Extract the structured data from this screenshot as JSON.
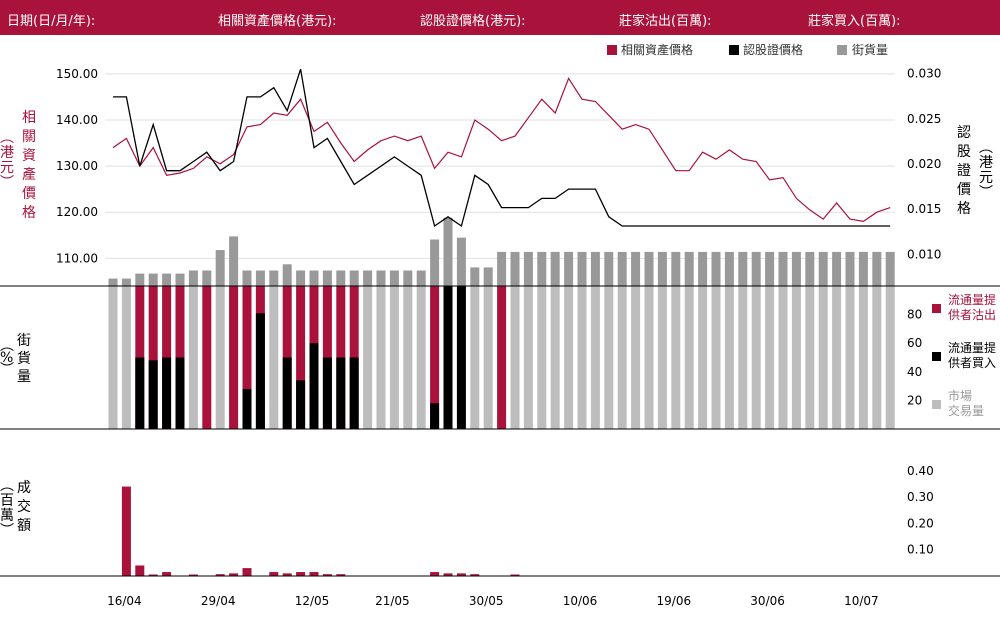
{
  "header": {
    "date_label": "日期(日/月/年):",
    "underlying_label": "相關資產價格(港元):",
    "warrant_label": "認股證價格(港元):",
    "sold_label": "莊家沽出(百萬):",
    "bought_label": "莊家買入(百萬):"
  },
  "legend_top": {
    "underlying": "相關資產價格",
    "warrant": "認股證價格",
    "outstanding": "街貨量"
  },
  "legend_mid": {
    "sold": [
      "流通量提",
      "供者沽出"
    ],
    "bought": [
      "流通量提",
      "供者買入"
    ],
    "market": [
      "市場",
      "交易量"
    ]
  },
  "axis_titles": {
    "left_top": [
      "相",
      "關",
      "資",
      "產",
      "價",
      "格"
    ],
    "left_top_paren": "(港元)",
    "right_top": [
      "認",
      "股",
      "證",
      "價",
      "格"
    ],
    "right_top_paren": "(港元)",
    "left_mid": [
      "街",
      "貨",
      "量"
    ],
    "left_mid_paren": "(%)",
    "left_bot": [
      "成",
      "交",
      "額"
    ],
    "left_bot_paren": "(百萬)"
  },
  "colors": {
    "red": "#a8123b",
    "black": "#000000",
    "gray": "#999999",
    "lightgray": "#bdbdbd"
  },
  "chart_data": {
    "type": "line",
    "x_tick_labels": [
      "16/04",
      "29/04",
      "12/05",
      "21/05",
      "30/05",
      "10/06",
      "19/06",
      "30/06",
      "10/07"
    ],
    "x_tick_index": [
      1,
      8,
      15,
      21,
      28,
      35,
      42,
      49,
      56
    ],
    "price_panel": {
      "left_axis": {
        "ticks": [
          "110.00",
          "120.00",
          "130.00",
          "140.00",
          "150.00"
        ],
        "range": [
          104,
          153
        ]
      },
      "right_axis": {
        "ticks": [
          "0.010",
          "0.015",
          "0.020",
          "0.025",
          "0.030"
        ],
        "range": [
          0.0065,
          0.0315
        ]
      },
      "series": [
        {
          "name": "相關資產價格",
          "axis": "left",
          "values": [
            134,
            136,
            130,
            134,
            128,
            128.5,
            129.5,
            132,
            130.5,
            132.5,
            138.5,
            139,
            141.5,
            141,
            144.5,
            137.5,
            139.5,
            135,
            131,
            133.5,
            135.5,
            136.5,
            135.5,
            136.5,
            129.5,
            133,
            132,
            140,
            138,
            135.5,
            136.5,
            140.5,
            144.5,
            141.5,
            149,
            144.5,
            144,
            141,
            138,
            139,
            138,
            133.5,
            129,
            129,
            133,
            131.5,
            133.5,
            131.5,
            131,
            127,
            127.5,
            123,
            120.5,
            118.5,
            122,
            118.5,
            118,
            120,
            121
          ]
        },
        {
          "name": "認股證價格",
          "axis": "left",
          "values": [
            145,
            145,
            130,
            139,
            129,
            129,
            131,
            133,
            129,
            131,
            145,
            145,
            147,
            142,
            151,
            134,
            136,
            131,
            126,
            128,
            130,
            132,
            130,
            128,
            117,
            119,
            117,
            128,
            126,
            121,
            121,
            121,
            123,
            123,
            125,
            125,
            125,
            119,
            117,
            117,
            117,
            117,
            117,
            117,
            117,
            117,
            117,
            117,
            117,
            117,
            117,
            117,
            117,
            117,
            117,
            117,
            117,
            117,
            117
          ]
        }
      ],
      "outstanding_bars": [
        1.2,
        1.2,
        2,
        2,
        2,
        2,
        2.5,
        2.5,
        5.8,
        8,
        2.5,
        2.5,
        2.5,
        3.5,
        2.5,
        2.5,
        2.5,
        2.5,
        2.5,
        2.5,
        2.5,
        2.5,
        2.5,
        2.5,
        7.5,
        11,
        7.8,
        3,
        3,
        5.5,
        5.5,
        5.5,
        5.5,
        5.5,
        5.5,
        5.5,
        5.5,
        5.5,
        5.5,
        5.5,
        5.5,
        5.5,
        5.5,
        5.5,
        5.5,
        5.5,
        5.5,
        5.5,
        5.5,
        5.5,
        5.5,
        5.5,
        5.5,
        5.5,
        5.5,
        5.5,
        5.5,
        5.5,
        5.5
      ]
    },
    "volume_share_panel": {
      "axis": {
        "ticks": [
          "20",
          "40",
          "60",
          "80"
        ],
        "range": [
          0,
          100
        ]
      },
      "sold": [
        0,
        0,
        100,
        100,
        100,
        100,
        0,
        100,
        0,
        100,
        100,
        100,
        0,
        100,
        100,
        100,
        100,
        100,
        100,
        0,
        0,
        0,
        0,
        0,
        100,
        100,
        0,
        0,
        0,
        100,
        0,
        0,
        0,
        0,
        0,
        0,
        0,
        0,
        0,
        0,
        0,
        0,
        0,
        0,
        0,
        0,
        0,
        0,
        0,
        0,
        0,
        0,
        0,
        0,
        0,
        0,
        0,
        0,
        0
      ],
      "bought": [
        0,
        0,
        50,
        48,
        50,
        50,
        0,
        0,
        0,
        0,
        28,
        81,
        0,
        50,
        34,
        60,
        50,
        50,
        50,
        0,
        0,
        0,
        0,
        0,
        18,
        100,
        100,
        0,
        0,
        0,
        0,
        0,
        0,
        0,
        0,
        0,
        0,
        0,
        0,
        0,
        0,
        0,
        0,
        0,
        0,
        0,
        0,
        0,
        0,
        0,
        0,
        0,
        0,
        0,
        0,
        0,
        0,
        0,
        0
      ],
      "market": [
        100,
        100,
        0,
        0,
        0,
        0,
        100,
        0,
        100,
        0,
        0,
        20,
        100,
        0,
        0,
        0,
        0,
        0,
        0,
        100,
        100,
        100,
        100,
        100,
        0,
        0,
        0,
        100,
        100,
        0,
        100,
        100,
        100,
        100,
        100,
        100,
        100,
        100,
        100,
        100,
        100,
        100,
        100,
        100,
        100,
        100,
        100,
        100,
        100,
        100,
        100,
        100,
        100,
        100,
        100,
        100,
        100,
        100,
        100
      ]
    },
    "turnover_panel": {
      "axis": {
        "ticks": [
          "0.10",
          "0.20",
          "0.30",
          "0.40"
        ],
        "range": [
          0,
          0.46
        ]
      },
      "values": [
        0,
        0.34,
        0.04,
        0.004,
        0.015,
        0,
        0.004,
        0,
        0.007,
        0.01,
        0.03,
        0,
        0.015,
        0.01,
        0.015,
        0.015,
        0.007,
        0.007,
        0,
        0,
        0,
        0,
        0,
        0,
        0.015,
        0.01,
        0.01,
        0.007,
        0,
        0,
        0.004,
        0,
        0,
        0,
        0,
        0,
        0,
        0,
        0,
        0,
        0,
        0,
        0,
        0,
        0,
        0,
        0,
        0,
        0,
        0,
        0,
        0,
        0,
        0,
        0,
        0,
        0,
        0,
        0
      ]
    }
  }
}
